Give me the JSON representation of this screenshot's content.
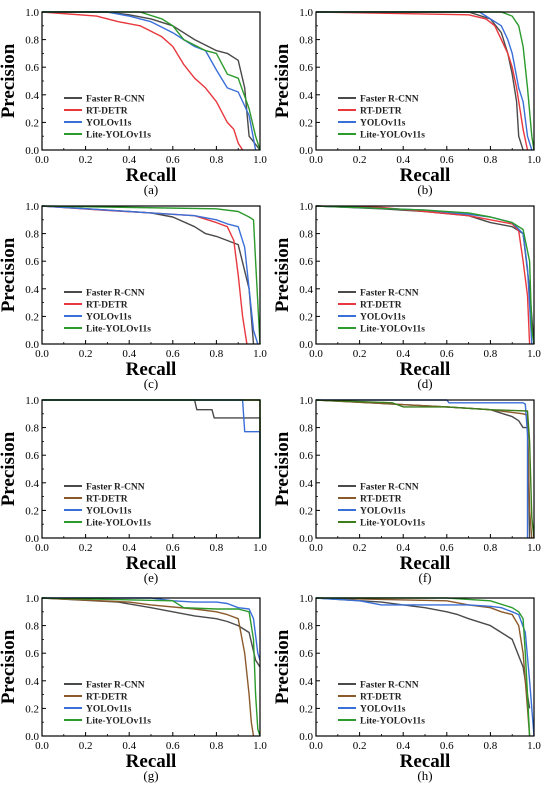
{
  "figure": {
    "colors": {
      "Faster R-CNN": "#4a4a4a",
      "RT-DETR": "#e8383d",
      "YOLOv11s": "#3a6fd8",
      "Lite-YOLOv11s": "#2c9a2c",
      "RT-DETR-brown": "#8b5a2b",
      "Lite-YOLOv11s-dark": "#3c7d1c"
    }
  },
  "chart_data": [
    {
      "panel": "(a)",
      "type": "line",
      "xlabel": "Recall",
      "ylabel": "Precision",
      "xlim": [
        0,
        1
      ],
      "ylim": [
        0,
        1
      ],
      "xticks": [
        "0.0",
        "0.2",
        "0.4",
        "0.6",
        "0.8",
        "1.0"
      ],
      "yticks": [
        "0.0",
        "0.2",
        "0.4",
        "0.6",
        "0.8",
        "1.0"
      ],
      "legend": "bottom-left",
      "series": [
        {
          "name": "Faster R-CNN",
          "color": "#4a4a4a",
          "x": [
            0,
            0.3,
            0.4,
            0.5,
            0.6,
            0.7,
            0.8,
            0.85,
            0.9,
            0.93,
            0.95,
            1.0
          ],
          "y": [
            1,
            1,
            0.98,
            0.95,
            0.9,
            0.8,
            0.72,
            0.7,
            0.65,
            0.45,
            0.1,
            0
          ]
        },
        {
          "name": "RT-DETR",
          "color": "#e8383d",
          "x": [
            0,
            0.25,
            0.35,
            0.45,
            0.55,
            0.6,
            0.65,
            0.7,
            0.75,
            0.8,
            0.85,
            0.88,
            0.9,
            0.92
          ],
          "y": [
            1,
            0.97,
            0.93,
            0.9,
            0.82,
            0.75,
            0.62,
            0.52,
            0.45,
            0.35,
            0.2,
            0.15,
            0.05,
            0
          ]
        },
        {
          "name": "YOLOv11s",
          "color": "#3a6fd8",
          "x": [
            0,
            0.3,
            0.4,
            0.5,
            0.6,
            0.65,
            0.7,
            0.75,
            0.8,
            0.85,
            0.9,
            0.95,
            0.98
          ],
          "y": [
            1,
            1,
            0.97,
            0.93,
            0.85,
            0.8,
            0.75,
            0.72,
            0.58,
            0.45,
            0.42,
            0.25,
            0
          ]
        },
        {
          "name": "Lite-YOLOv11s",
          "color": "#2c9a2c",
          "x": [
            0,
            0.45,
            0.55,
            0.6,
            0.65,
            0.75,
            0.8,
            0.85,
            0.9,
            0.95,
            0.98,
            1.0
          ],
          "y": [
            1,
            1,
            0.95,
            0.9,
            0.8,
            0.72,
            0.7,
            0.55,
            0.52,
            0.3,
            0.1,
            0
          ]
        }
      ]
    },
    {
      "panel": "(b)",
      "type": "line",
      "xlabel": "Recall",
      "ylabel": "Precision",
      "xlim": [
        0,
        1
      ],
      "ylim": [
        0,
        1
      ],
      "xticks": [
        "0.0",
        "0.2",
        "0.4",
        "0.6",
        "0.8",
        "1.0"
      ],
      "yticks": [
        "0.0",
        "0.2",
        "0.4",
        "0.6",
        "0.8",
        "1.0"
      ],
      "legend": "bottom-left",
      "series": [
        {
          "name": "Faster R-CNN",
          "color": "#4a4a4a",
          "x": [
            0,
            0.7,
            0.8,
            0.85,
            0.88,
            0.9,
            0.92,
            0.93,
            0.95
          ],
          "y": [
            1,
            1,
            0.95,
            0.85,
            0.7,
            0.55,
            0.35,
            0.1,
            0
          ]
        },
        {
          "name": "RT-DETR",
          "color": "#e8383d",
          "x": [
            0,
            0.7,
            0.78,
            0.82,
            0.85,
            0.88,
            0.9,
            0.92,
            0.95,
            0.97
          ],
          "y": [
            1,
            0.98,
            0.95,
            0.9,
            0.8,
            0.7,
            0.6,
            0.45,
            0.15,
            0
          ]
        },
        {
          "name": "YOLOv11s",
          "color": "#3a6fd8",
          "x": [
            0,
            0.75,
            0.8,
            0.85,
            0.88,
            0.9,
            0.93,
            0.95,
            0.97,
            0.99
          ],
          "y": [
            1,
            1,
            0.95,
            0.9,
            0.8,
            0.7,
            0.45,
            0.35,
            0.1,
            0
          ]
        },
        {
          "name": "Lite-YOLOv11s",
          "color": "#2c9a2c",
          "x": [
            0,
            0.85,
            0.9,
            0.93,
            0.95,
            0.97,
            0.99,
            1.0
          ],
          "y": [
            1,
            1,
            0.97,
            0.9,
            0.75,
            0.45,
            0.1,
            0
          ]
        }
      ]
    },
    {
      "panel": "(c)",
      "type": "line",
      "xlabel": "Recall",
      "ylabel": "Precision",
      "xlim": [
        0,
        1
      ],
      "ylim": [
        0,
        1
      ],
      "xticks": [
        "0.0",
        "0.2",
        "0.4",
        "0.6",
        "0.8",
        "1.0"
      ],
      "yticks": [
        "0.0",
        "0.2",
        "0.4",
        "0.6",
        "0.8",
        "1.0"
      ],
      "legend": "bottom-left",
      "series": [
        {
          "name": "Faster R-CNN",
          "color": "#4a4a4a",
          "x": [
            0,
            0.3,
            0.5,
            0.6,
            0.7,
            0.75,
            0.8,
            0.85,
            0.9,
            0.95,
            0.97
          ],
          "y": [
            1,
            0.97,
            0.95,
            0.92,
            0.85,
            0.8,
            0.78,
            0.75,
            0.72,
            0.4,
            0
          ]
        },
        {
          "name": "RT-DETR",
          "color": "#e8383d",
          "x": [
            0,
            0.27,
            0.5,
            0.7,
            0.8,
            0.85,
            0.88,
            0.9,
            0.92,
            0.94
          ],
          "y": [
            1,
            0.97,
            0.95,
            0.93,
            0.88,
            0.85,
            0.75,
            0.5,
            0.2,
            0
          ]
        },
        {
          "name": "YOLOv11s",
          "color": "#3a6fd8",
          "x": [
            0,
            0.5,
            0.7,
            0.8,
            0.85,
            0.9,
            0.93,
            0.95,
            0.97,
            0.99
          ],
          "y": [
            1,
            0.95,
            0.93,
            0.9,
            0.87,
            0.85,
            0.7,
            0.4,
            0.1,
            0
          ]
        },
        {
          "name": "Lite-YOLOv11s",
          "color": "#2c9a2c",
          "x": [
            0,
            0.8,
            0.9,
            0.95,
            0.97,
            0.98,
            1.0
          ],
          "y": [
            1,
            0.98,
            0.96,
            0.92,
            0.9,
            0.6,
            0
          ]
        }
      ]
    },
    {
      "panel": "(d)",
      "type": "line",
      "xlabel": "Recall",
      "ylabel": "Precision",
      "xlim": [
        0,
        1
      ],
      "ylim": [
        0,
        1
      ],
      "xticks": [
        "0.0",
        "0.2",
        "0.4",
        "0.6",
        "0.8",
        "1.0"
      ],
      "yticks": [
        "0.0",
        "0.2",
        "0.4",
        "0.6",
        "0.8",
        "1.0"
      ],
      "legend": "bottom-left",
      "series": [
        {
          "name": "Faster R-CNN",
          "color": "#4a4a4a",
          "x": [
            0,
            0.3,
            0.5,
            0.7,
            0.8,
            0.9,
            0.95,
            0.98,
            1.0
          ],
          "y": [
            1,
            0.98,
            0.96,
            0.93,
            0.88,
            0.85,
            0.8,
            0.4,
            0
          ]
        },
        {
          "name": "RT-DETR",
          "color": "#e8383d",
          "x": [
            0,
            0.3,
            0.5,
            0.7,
            0.8,
            0.9,
            0.93,
            0.95,
            0.97,
            0.98
          ],
          "y": [
            1,
            0.99,
            0.96,
            0.93,
            0.9,
            0.87,
            0.82,
            0.6,
            0.35,
            0
          ]
        },
        {
          "name": "YOLOv11s",
          "color": "#3a6fd8",
          "x": [
            0,
            0.5,
            0.7,
            0.8,
            0.9,
            0.95,
            0.97,
            0.99
          ],
          "y": [
            1,
            0.97,
            0.94,
            0.92,
            0.88,
            0.8,
            0.55,
            0
          ]
        },
        {
          "name": "Lite-YOLOv11s",
          "color": "#2c9a2c",
          "x": [
            0,
            0.5,
            0.7,
            0.8,
            0.9,
            0.95,
            0.98,
            0.99,
            1.0
          ],
          "y": [
            1,
            0.97,
            0.95,
            0.92,
            0.88,
            0.83,
            0.6,
            0.1,
            0
          ]
        }
      ]
    },
    {
      "panel": "(e)",
      "type": "line",
      "xlabel": "Recall",
      "ylabel": "Precision",
      "xlim": [
        0,
        1
      ],
      "ylim": [
        0,
        1
      ],
      "xticks": [
        "0.0",
        "0.2",
        "0.4",
        "0.6",
        "0.8",
        "1.0"
      ],
      "yticks": [
        "0.0",
        "0.2",
        "0.4",
        "0.6",
        "0.8",
        "1.0"
      ],
      "legend": "bottom-left",
      "series": [
        {
          "name": "Faster R-CNN",
          "color": "#4a4a4a",
          "x": [
            0,
            0.7,
            0.71,
            0.78,
            0.79,
            0.99,
            1.0,
            1.0
          ],
          "y": [
            1,
            1,
            0.93,
            0.93,
            0.87,
            0.87,
            0.87,
            0
          ]
        },
        {
          "name": "RT-DETR",
          "color": "#8b5a2b",
          "x": [
            0,
            1.0,
            1.0
          ],
          "y": [
            1,
            1,
            0
          ]
        },
        {
          "name": "YOLOv11s",
          "color": "#3a6fd8",
          "x": [
            0,
            0.92,
            0.93,
            0.99,
            1.0,
            1.0
          ],
          "y": [
            1,
            1,
            0.77,
            0.77,
            0.77,
            0
          ]
        },
        {
          "name": "Lite-YOLOv11s",
          "color": "#2c9a2c",
          "x": [
            0,
            1.0,
            1.0
          ],
          "y": [
            1,
            1,
            0
          ]
        }
      ]
    },
    {
      "panel": "(f)",
      "type": "line",
      "xlabel": "Recall",
      "ylabel": "Precision",
      "xlim": [
        0,
        1
      ],
      "ylim": [
        0,
        1
      ],
      "xticks": [
        "0.0",
        "0.2",
        "0.4",
        "0.6",
        "0.8",
        "1.0"
      ],
      "yticks": [
        "0.0",
        "0.2",
        "0.4",
        "0.6",
        "0.8",
        "1.0"
      ],
      "legend": "bottom-left",
      "series": [
        {
          "name": "Faster R-CNN",
          "color": "#4a4a4a",
          "x": [
            0,
            0.6,
            0.8,
            0.9,
            0.93,
            0.95,
            0.97,
            0.98
          ],
          "y": [
            1,
            0.95,
            0.93,
            0.88,
            0.85,
            0.8,
            0.8,
            0
          ]
        },
        {
          "name": "RT-DETR",
          "color": "#8b5a2b",
          "x": [
            0,
            0.6,
            0.8,
            0.9,
            0.95,
            0.97,
            0.98,
            0.99
          ],
          "y": [
            1,
            0.95,
            0.93,
            0.91,
            0.9,
            0.89,
            0.2,
            0
          ]
        },
        {
          "name": "YOLOv11s",
          "color": "#3a6fd8",
          "x": [
            0,
            0.6,
            0.61,
            0.8,
            0.95,
            0.96,
            0.97,
            0.97
          ],
          "y": [
            1,
            1,
            0.98,
            0.98,
            0.98,
            0.97,
            0.75,
            0
          ]
        },
        {
          "name": "Lite-YOLOv11s",
          "color": "#3c7d1c",
          "x": [
            0,
            0.35,
            0.4,
            0.6,
            0.8,
            0.97,
            0.98,
            0.99,
            1.0
          ],
          "y": [
            1,
            0.98,
            0.95,
            0.95,
            0.93,
            0.92,
            0.7,
            0.15,
            0
          ]
        }
      ]
    },
    {
      "panel": "(g)",
      "type": "line",
      "xlabel": "Recall",
      "ylabel": "Precision",
      "xlim": [
        0,
        1
      ],
      "ylim": [
        0,
        1
      ],
      "xticks": [
        "0.0",
        "0.2",
        "0.4",
        "0.6",
        "0.8",
        "1.0"
      ],
      "yticks": [
        "0.0",
        "0.2",
        "0.4",
        "0.6",
        "0.8",
        "1.0"
      ],
      "legend": "bottom-left",
      "series": [
        {
          "name": "Faster R-CNN",
          "color": "#4a4a4a",
          "x": [
            0,
            0.35,
            0.5,
            0.6,
            0.7,
            0.8,
            0.85,
            0.9,
            0.95,
            0.98,
            1.0
          ],
          "y": [
            1,
            0.97,
            0.93,
            0.9,
            0.87,
            0.85,
            0.83,
            0.8,
            0.75,
            0.55,
            0.5
          ]
        },
        {
          "name": "RT-DETR",
          "color": "#8b5a2b",
          "x": [
            0,
            0.4,
            0.5,
            0.7,
            0.8,
            0.85,
            0.9,
            0.93,
            0.95,
            0.96,
            0.97
          ],
          "y": [
            1,
            0.97,
            0.95,
            0.92,
            0.9,
            0.88,
            0.85,
            0.6,
            0.3,
            0.1,
            0
          ]
        },
        {
          "name": "YOLOv11s",
          "color": "#3a6fd8",
          "x": [
            0,
            0.5,
            0.6,
            0.7,
            0.8,
            0.85,
            0.9,
            0.95,
            0.97,
            0.99,
            1.0
          ],
          "y": [
            1,
            1,
            0.98,
            0.97,
            0.97,
            0.96,
            0.93,
            0.92,
            0.85,
            0.6,
            0.55
          ]
        },
        {
          "name": "Lite-YOLOv11s",
          "color": "#2c9a2c",
          "x": [
            0,
            0.6,
            0.65,
            0.8,
            0.9,
            0.95,
            0.97,
            0.98,
            0.99,
            1.0
          ],
          "y": [
            1,
            0.98,
            0.93,
            0.92,
            0.92,
            0.9,
            0.7,
            0.3,
            0.05,
            0
          ]
        }
      ]
    },
    {
      "panel": "(h)",
      "type": "line",
      "xlabel": "Recall",
      "ylabel": "Precision",
      "xlim": [
        0,
        1
      ],
      "ylim": [
        0,
        1
      ],
      "xticks": [
        "0.0",
        "0.2",
        "0.4",
        "0.6",
        "0.8",
        "1.0"
      ],
      "yticks": [
        "0.0",
        "0.2",
        "0.4",
        "0.6",
        "0.8",
        "1.0"
      ],
      "legend": "bottom-left",
      "series": [
        {
          "name": "Faster R-CNN",
          "color": "#4a4a4a",
          "x": [
            0,
            0.3,
            0.4,
            0.5,
            0.6,
            0.65,
            0.7,
            0.8,
            0.85,
            0.9,
            0.95,
            0.98
          ],
          "y": [
            1,
            0.97,
            0.95,
            0.93,
            0.9,
            0.88,
            0.85,
            0.8,
            0.75,
            0.7,
            0.5,
            0.2
          ]
        },
        {
          "name": "RT-DETR",
          "color": "#8b5a2b",
          "x": [
            0,
            0.6,
            0.7,
            0.8,
            0.85,
            0.9,
            0.93,
            0.95,
            0.97,
            0.98
          ],
          "y": [
            1,
            0.98,
            0.95,
            0.93,
            0.9,
            0.88,
            0.8,
            0.6,
            0.2,
            0
          ]
        },
        {
          "name": "YOLOv11s",
          "color": "#3a6fd8",
          "x": [
            0,
            0.2,
            0.3,
            0.5,
            0.7,
            0.8,
            0.85,
            0.9,
            0.93,
            0.96,
            0.98,
            1.0
          ],
          "y": [
            1,
            0.98,
            0.95,
            0.95,
            0.95,
            0.94,
            0.93,
            0.9,
            0.88,
            0.75,
            0.4,
            0
          ]
        },
        {
          "name": "Lite-YOLOv11s",
          "color": "#2c9a2c",
          "x": [
            0,
            0.6,
            0.7,
            0.8,
            0.9,
            0.93,
            0.95,
            0.96,
            0.97,
            0.98
          ],
          "y": [
            1,
            1,
            0.99,
            0.98,
            0.93,
            0.9,
            0.85,
            0.6,
            0.3,
            0
          ]
        }
      ]
    }
  ]
}
